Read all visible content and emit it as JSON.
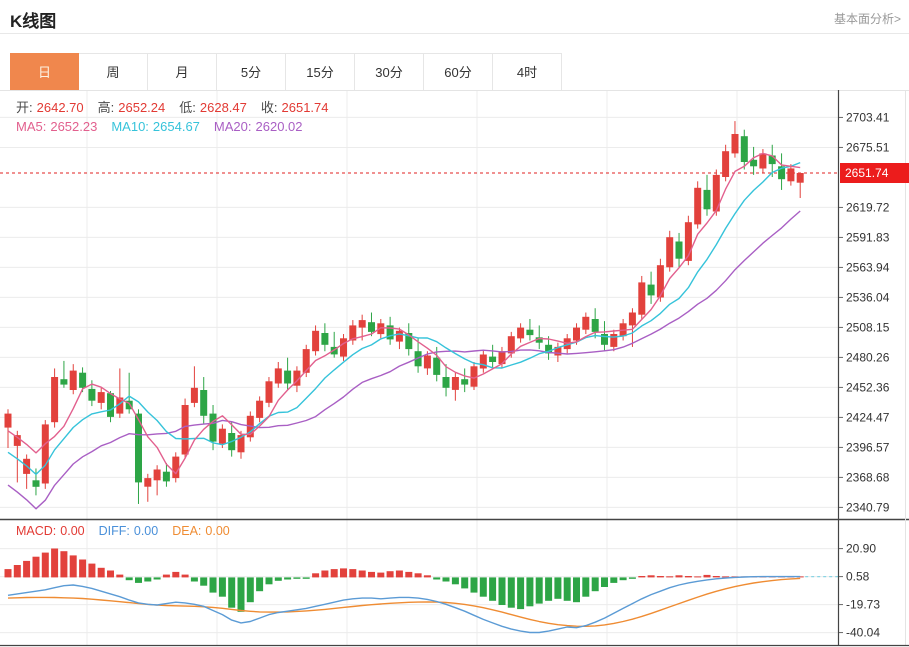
{
  "header": {
    "title": "K线图",
    "link": "基本面分析>"
  },
  "tabs": {
    "items": [
      "日",
      "周",
      "月",
      "5分",
      "15分",
      "30分",
      "60分",
      "4时"
    ],
    "active_index": 0
  },
  "ohlc_legend": {
    "items": [
      {
        "label": "开:",
        "value": "2642.70"
      },
      {
        "label": "高:",
        "value": "2652.24"
      },
      {
        "label": "低:",
        "value": "2628.47"
      },
      {
        "label": "收:",
        "value": "2651.74"
      }
    ],
    "label_color": "#4a4a4a",
    "value_color": "#e23a34"
  },
  "ma_legend": [
    {
      "label": "MA5:",
      "value": "2652.23",
      "color": "#e2608e"
    },
    {
      "label": "MA10:",
      "value": "2654.67",
      "color": "#36c3da"
    },
    {
      "label": "MA20:",
      "value": "2620.02",
      "color": "#a95fc4"
    }
  ],
  "macd_legend": [
    {
      "label": "MACD:",
      "value": "0.00",
      "color": "#e23a34"
    },
    {
      "label": "DIFF:",
      "value": "0.00",
      "color": "#4a90d9"
    },
    {
      "label": "DEA:",
      "value": "0.00",
      "color": "#ef8c33"
    }
  ],
  "price_axis": {
    "labels": [
      "2703.41",
      "2675.51",
      "2619.72",
      "2591.83",
      "2563.94",
      "2536.04",
      "2508.15",
      "2480.26",
      "2452.36",
      "2424.47",
      "2396.57",
      "2368.68",
      "2340.79"
    ],
    "badge": "2651.74"
  },
  "macd_axis": {
    "labels": [
      "20.90",
      "0.58",
      "-19.73",
      "-40.04"
    ]
  },
  "colors": {
    "up": "#e2413c",
    "down": "#2da546",
    "ma5": "#e2608e",
    "ma10": "#36c3da",
    "ma20": "#a95fc4",
    "diff": "#5b9bd5",
    "dea": "#ef8c33",
    "grid": "#ececec",
    "axis": "#444444",
    "price_line": "#e02020",
    "dash_teal": "#8ad4e4",
    "active_tab": "#f0874d",
    "badge_bg": "#ec1c1c"
  },
  "chart_data": {
    "type": "candlestick+macd",
    "title": "K线图",
    "price_line": 2651.74,
    "ylim": [
      2329,
      2728
    ],
    "macd_ylim": [
      -49,
      43
    ],
    "candles": [
      [
        2415,
        2432,
        2396,
        2428
      ],
      [
        2398,
        2412,
        2364,
        2408
      ],
      [
        2372,
        2390,
        2358,
        2386
      ],
      [
        2366,
        2377,
        2352,
        2360
      ],
      [
        2363,
        2422,
        2358,
        2418
      ],
      [
        2420,
        2470,
        2415,
        2462
      ],
      [
        2460,
        2477,
        2452,
        2455
      ],
      [
        2450,
        2474,
        2446,
        2468
      ],
      [
        2466,
        2471,
        2448,
        2452
      ],
      [
        2451,
        2459,
        2435,
        2440
      ],
      [
        2438,
        2452,
        2432,
        2448
      ],
      [
        2447,
        2449,
        2420,
        2425
      ],
      [
        2428,
        2470,
        2424,
        2443
      ],
      [
        2440,
        2466,
        2428,
        2432
      ],
      [
        2428,
        2432,
        2344,
        2364
      ],
      [
        2360,
        2372,
        2346,
        2368
      ],
      [
        2366,
        2380,
        2352,
        2376
      ],
      [
        2374,
        2382,
        2360,
        2365
      ],
      [
        2368,
        2392,
        2364,
        2388
      ],
      [
        2390,
        2442,
        2386,
        2436
      ],
      [
        2438,
        2472,
        2434,
        2452
      ],
      [
        2450,
        2462,
        2418,
        2426
      ],
      [
        2428,
        2436,
        2394,
        2402
      ],
      [
        2400,
        2418,
        2396,
        2414
      ],
      [
        2410,
        2420,
        2388,
        2394
      ],
      [
        2392,
        2412,
        2386,
        2408
      ],
      [
        2406,
        2430,
        2402,
        2426
      ],
      [
        2424,
        2444,
        2420,
        2440
      ],
      [
        2438,
        2462,
        2434,
        2458
      ],
      [
        2456,
        2476,
        2452,
        2470
      ],
      [
        2468,
        2480,
        2450,
        2456
      ],
      [
        2454,
        2472,
        2448,
        2468
      ],
      [
        2466,
        2492,
        2462,
        2488
      ],
      [
        2486,
        2510,
        2482,
        2505
      ],
      [
        2503,
        2512,
        2486,
        2492
      ],
      [
        2490,
        2504,
        2480,
        2483
      ],
      [
        2481,
        2502,
        2477,
        2498
      ],
      [
        2496,
        2515,
        2492,
        2510
      ],
      [
        2508,
        2520,
        2496,
        2515
      ],
      [
        2513,
        2522,
        2500,
        2504
      ],
      [
        2502,
        2516,
        2498,
        2512
      ],
      [
        2510,
        2518,
        2492,
        2497
      ],
      [
        2495,
        2508,
        2488,
        2505
      ],
      [
        2503,
        2512,
        2482,
        2488
      ],
      [
        2486,
        2498,
        2466,
        2472
      ],
      [
        2470,
        2486,
        2464,
        2482
      ],
      [
        2480,
        2490,
        2458,
        2464
      ],
      [
        2462,
        2474,
        2444,
        2452
      ],
      [
        2450,
        2466,
        2440,
        2462
      ],
      [
        2460,
        2470,
        2448,
        2455
      ],
      [
        2453,
        2476,
        2450,
        2472
      ],
      [
        2470,
        2487,
        2466,
        2483
      ],
      [
        2481,
        2492,
        2470,
        2476
      ],
      [
        2474,
        2490,
        2470,
        2486
      ],
      [
        2484,
        2504,
        2480,
        2500
      ],
      [
        2498,
        2512,
        2494,
        2508
      ],
      [
        2506,
        2516,
        2496,
        2501
      ],
      [
        2499,
        2510,
        2488,
        2494
      ],
      [
        2492,
        2500,
        2478,
        2484
      ],
      [
        2482,
        2494,
        2476,
        2490
      ],
      [
        2488,
        2502,
        2484,
        2498
      ],
      [
        2496,
        2512,
        2492,
        2508
      ],
      [
        2506,
        2522,
        2502,
        2518
      ],
      [
        2516,
        2526,
        2498,
        2504
      ],
      [
        2502,
        2514,
        2486,
        2492
      ],
      [
        2490,
        2506,
        2486,
        2502
      ],
      [
        2500,
        2516,
        2496,
        2512
      ],
      [
        2510,
        2526,
        2490,
        2522
      ],
      [
        2520,
        2556,
        2516,
        2550
      ],
      [
        2548,
        2560,
        2530,
        2538
      ],
      [
        2536,
        2572,
        2532,
        2566
      ],
      [
        2564,
        2598,
        2560,
        2592
      ],
      [
        2588,
        2596,
        2564,
        2572
      ],
      [
        2570,
        2612,
        2566,
        2606
      ],
      [
        2604,
        2644,
        2600,
        2638
      ],
      [
        2636,
        2650,
        2612,
        2618
      ],
      [
        2616,
        2655,
        2612,
        2650
      ],
      [
        2648,
        2678,
        2644,
        2672
      ],
      [
        2670,
        2700,
        2666,
        2688
      ],
      [
        2686,
        2692,
        2655,
        2662
      ],
      [
        2664,
        2676,
        2650,
        2658
      ],
      [
        2656,
        2674,
        2652,
        2670
      ],
      [
        2668,
        2678,
        2648,
        2660
      ],
      [
        2658,
        2670,
        2636,
        2646
      ],
      [
        2644,
        2660,
        2640,
        2656
      ],
      [
        2642.7,
        2652.24,
        2628.47,
        2651.74
      ]
    ],
    "macd": {
      "hist": [
        6,
        9,
        12,
        15,
        18,
        21,
        19,
        16,
        13,
        10,
        7,
        5,
        2,
        -2,
        -4,
        -3,
        -1.5,
        2,
        4,
        2,
        -3,
        -6,
        -11,
        -14,
        -22,
        -25,
        -18,
        -10,
        -5,
        -2.5,
        -1.5,
        -1,
        -1,
        3,
        5,
        6,
        6.5,
        6,
        5,
        4,
        3.5,
        4.5,
        5,
        4,
        3,
        1.5,
        -1.5,
        -3,
        -5,
        -8,
        -11,
        -14,
        -17,
        -20,
        -22,
        -23,
        -21,
        -19,
        -17,
        -15.5,
        -17,
        -18,
        -14,
        -10,
        -7,
        -4,
        -2,
        -1,
        1,
        1.5,
        1,
        0.8,
        1.5,
        1,
        0.6,
        1.8,
        1,
        0.5,
        0.4,
        0.3,
        0.3,
        0.2,
        0.2,
        0.1,
        0.1,
        0
      ],
      "diff": [
        -13,
        -12,
        -11,
        -10,
        -9,
        -7.5,
        -6,
        -5.5,
        -6.5,
        -8,
        -10,
        -12,
        -14,
        -16.5,
        -18.5,
        -19.5,
        -20,
        -19,
        -18,
        -18.5,
        -19.5,
        -21,
        -24,
        -27,
        -31,
        -33,
        -32,
        -29.5,
        -27,
        -25.5,
        -24.5,
        -23.5,
        -22.5,
        -21,
        -19.5,
        -18,
        -16.5,
        -15.5,
        -15,
        -15,
        -15.5,
        -15,
        -14.5,
        -14.5,
        -15,
        -16,
        -17.5,
        -19.5,
        -22,
        -24.5,
        -27.5,
        -30.5,
        -33,
        -35.5,
        -37.5,
        -39,
        -40,
        -40,
        -39,
        -37.5,
        -36,
        -36.5,
        -35,
        -32.5,
        -29.5,
        -26,
        -22.5,
        -19,
        -15.5,
        -12.5,
        -10,
        -7.5,
        -5.5,
        -4,
        -2.8,
        -1.8,
        -1,
        -0.4,
        0,
        0.3,
        0.5,
        0.58,
        0.58,
        0.58,
        0.58,
        0.58
      ],
      "dea": [
        -15,
        -14.8,
        -14.6,
        -14.5,
        -14.5,
        -14.6,
        -14.8,
        -15,
        -15.3,
        -15.8,
        -16.4,
        -17,
        -17.6,
        -18.3,
        -19,
        -19.6,
        -20.1,
        -20.4,
        -20.6,
        -20.8,
        -21,
        -21.3,
        -21.8,
        -22.4,
        -23.2,
        -24,
        -24.6,
        -25,
        -25.2,
        -25.2,
        -25,
        -24.7,
        -24.3,
        -23.8,
        -23.2,
        -22.5,
        -21.8,
        -21.1,
        -20.4,
        -19.8,
        -19.3,
        -18.8,
        -18.4,
        -18.1,
        -17.9,
        -17.8,
        -17.9,
        -18.2,
        -18.8,
        -19.6,
        -20.7,
        -22,
        -23.5,
        -25.2,
        -27,
        -28.8,
        -30.5,
        -32,
        -33.3,
        -34.3,
        -35,
        -35.4,
        -35.5,
        -35.2,
        -34.5,
        -33.4,
        -32,
        -30.3,
        -28.3,
        -26.1,
        -23.8,
        -21.4,
        -19,
        -16.6,
        -14.3,
        -12.1,
        -10.1,
        -8.3,
        -6.7,
        -5.3,
        -4.1,
        -3.1,
        -2.3,
        -1.6,
        -1.1,
        -0.7
      ]
    }
  }
}
